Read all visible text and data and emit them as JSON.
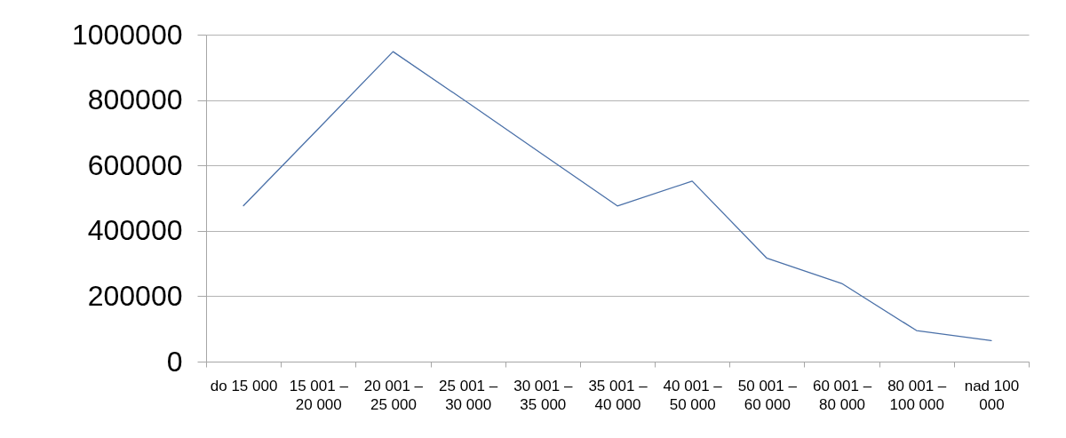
{
  "chart_data": {
    "type": "line",
    "categories": [
      "do 15 000",
      "15 001 – 20 000",
      "20 001 – 25 000",
      "25 001 – 30 000",
      "30 001 – 35 000",
      "35 001 – 40 000",
      "40 001 – 50 000",
      "50 001 – 60 000",
      "60 001 – 80 000",
      "80 001 – 100 000",
      "nad 100 000"
    ],
    "values": [
      477000,
      712000,
      948000,
      792000,
      634000,
      476000,
      552000,
      316000,
      239000,
      95000,
      64000
    ],
    "color": "#4a70a8",
    "ylim": [
      0,
      1000000
    ],
    "yticks": [
      0,
      200000,
      400000,
      600000,
      800000,
      1000000
    ],
    "grid": "y"
  }
}
